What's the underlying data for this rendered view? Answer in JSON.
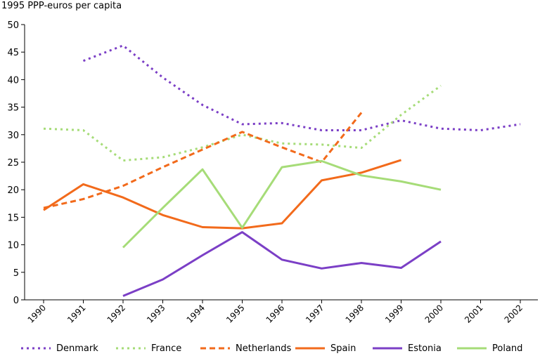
{
  "chart_data": {
    "type": "line",
    "ylabel": "1995 PPP-euros per capita",
    "ylim": [
      0,
      50
    ],
    "yticks": [
      0,
      5,
      10,
      15,
      20,
      25,
      30,
      35,
      40,
      45,
      50
    ],
    "x": [
      "1990",
      "1991",
      "1992",
      "1993",
      "1994",
      "1995",
      "1996",
      "1997",
      "1998",
      "1999",
      "2000",
      "2001",
      "2002"
    ],
    "legend_position": "bottom",
    "grid": false,
    "series": [
      {
        "name": "Denmark",
        "color": "#7b3fc6",
        "style": "dotted",
        "values": [
          null,
          43.4,
          46.2,
          40.4,
          35.4,
          31.9,
          32.1,
          30.8,
          30.8,
          32.6,
          31.1,
          30.8,
          31.9
        ]
      },
      {
        "name": "France",
        "color": "#a6dc78",
        "style": "dotted",
        "values": [
          31.1,
          30.8,
          25.3,
          25.9,
          27.7,
          30.0,
          28.4,
          28.2,
          27.6,
          33.6,
          38.9,
          null,
          null
        ]
      },
      {
        "name": "Netherlands",
        "color": "#f26a1b",
        "style": "dashed",
        "values": [
          16.7,
          18.3,
          20.7,
          24.1,
          27.3,
          30.5,
          27.7,
          25.0,
          34.0,
          null,
          null,
          null,
          null
        ]
      },
      {
        "name": "Spain",
        "color": "#f26a1b",
        "style": "solid",
        "values": [
          16.3,
          21.0,
          18.6,
          15.4,
          13.2,
          13.0,
          13.9,
          21.7,
          23.1,
          25.4,
          null,
          null,
          null
        ]
      },
      {
        "name": "Estonia",
        "color": "#7b3fc6",
        "style": "solid",
        "values": [
          null,
          null,
          0.7,
          3.7,
          8.1,
          12.3,
          7.3,
          5.7,
          6.7,
          5.8,
          10.6,
          null,
          null
        ]
      },
      {
        "name": "Poland",
        "color": "#a6dc78",
        "style": "solid",
        "values": [
          null,
          null,
          9.5,
          16.7,
          23.7,
          13.1,
          24.1,
          25.2,
          22.6,
          21.5,
          20.0,
          null,
          null
        ]
      }
    ]
  }
}
